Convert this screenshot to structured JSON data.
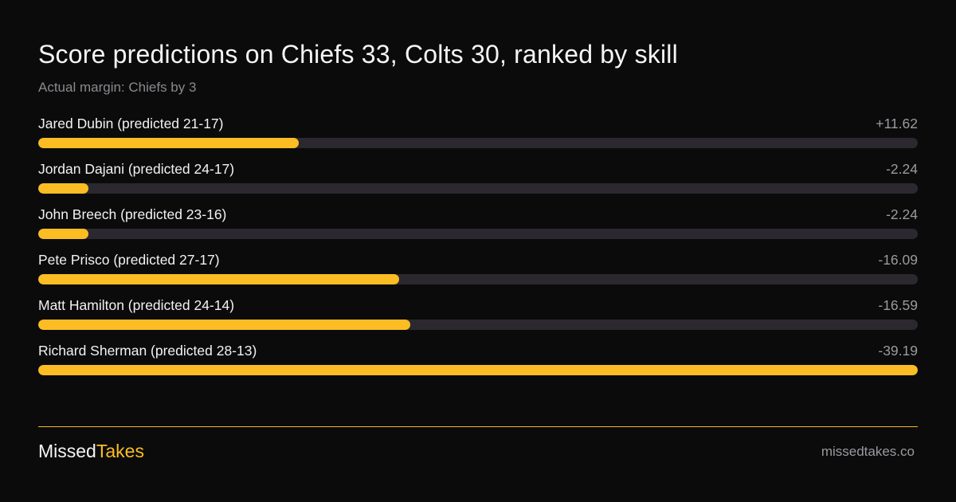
{
  "header": {
    "title": "Score predictions on Chiefs 33, Colts 30, ranked by skill",
    "subtitle": "Actual margin: Chiefs by 3"
  },
  "chart_data": {
    "type": "bar",
    "orientation": "horizontal",
    "categories": [
      "Jared Dubin (predicted 21-17)",
      "Jordan Dajani (predicted 24-17)",
      "John Breech (predicted 23-16)",
      "Pete Prisco (predicted 27-17)",
      "Matt Hamilton (predicted 24-14)",
      "Richard Sherman (predicted 28-13)"
    ],
    "values": [
      11.62,
      -2.24,
      -2.24,
      -16.09,
      -16.59,
      -39.19
    ],
    "value_labels": [
      "+11.62",
      "-2.24",
      "-2.24",
      "-16.09",
      "-16.59",
      "-39.19"
    ],
    "title": "Score predictions on Chiefs 33, Colts 30, ranked by skill",
    "subtitle": "Actual margin: Chiefs by 3",
    "bar_scale": "absolute value",
    "grid": false,
    "colors": {
      "bar": "#fbbd23",
      "track": "#2b292f",
      "background": "#0b0b0b"
    }
  },
  "footer": {
    "brand_part1": "Missed",
    "brand_part2": "Takes",
    "site": "missedtakes.co",
    "accent": "#fbbd23"
  }
}
